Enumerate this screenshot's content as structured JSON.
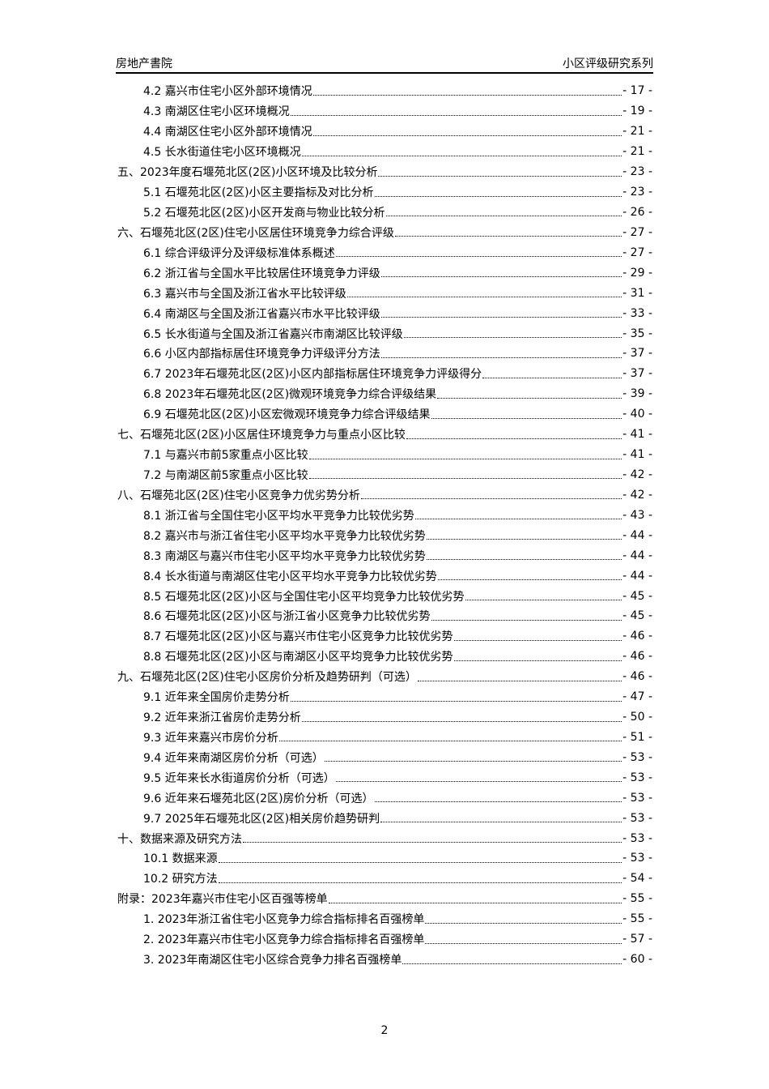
{
  "header": {
    "left": "房地产書院",
    "right": "小区评级研究系列"
  },
  "toc": [
    {
      "level": 1,
      "label": "4.2 嘉兴市住宅小区外部环境情况",
      "page": "- 17 -"
    },
    {
      "level": 1,
      "label": "4.3 南湖区住宅小区环境概况",
      "page": "- 19 -"
    },
    {
      "level": 1,
      "label": "4.4 南湖区住宅小区外部环境情况",
      "page": "- 21 -"
    },
    {
      "level": 1,
      "label": "4.5 长水街道住宅小区环境概况",
      "page": "- 21 -"
    },
    {
      "level": 0,
      "label": "五、2023年度石堰苑北区(2区)小区环境及比较分析",
      "page": "- 23 -"
    },
    {
      "level": 1,
      "label": "5.1 石堰苑北区(2区)小区主要指标及对比分析",
      "page": "- 23 -"
    },
    {
      "level": 1,
      "label": "5.2 石堰苑北区(2区)小区开发商与物业比较分析",
      "page": "- 26 -"
    },
    {
      "level": 0,
      "label": "六、石堰苑北区(2区)住宅小区居住环境竞争力综合评级",
      "page": "- 27 -"
    },
    {
      "level": 1,
      "label": "6.1 综合评级评分及评级标准体系概述",
      "page": "- 27 -"
    },
    {
      "level": 1,
      "label": "6.2 浙江省与全国水平比较居住环境竞争力评级",
      "page": "- 29 -"
    },
    {
      "level": 1,
      "label": "6.3 嘉兴市与全国及浙江省水平比较评级",
      "page": "- 31 -"
    },
    {
      "level": 1,
      "label": "6.4 南湖区与全国及浙江省嘉兴市水平比较评级",
      "page": "- 33 -"
    },
    {
      "level": 1,
      "label": "6.5 长水街道与全国及浙江省嘉兴市南湖区比较评级",
      "page": "- 35 -"
    },
    {
      "level": 1,
      "label": "6.6 小区内部指标居住环境竞争力评级评分方法",
      "page": "- 37 -"
    },
    {
      "level": 1,
      "label": "6.7 2023年石堰苑北区(2区)小区内部指标居住环境竞争力评级得分",
      "page": "- 37 -"
    },
    {
      "level": 1,
      "label": "6.8 2023年石堰苑北区(2区)微观环境竞争力综合评级结果",
      "page": "- 39 -"
    },
    {
      "level": 1,
      "label": "6.9 石堰苑北区(2区)小区宏微观环境竞争力综合评级结果",
      "page": "- 40 -"
    },
    {
      "level": 0,
      "label": "七、石堰苑北区(2区)小区居住环境竞争力与重点小区比较",
      "page": "- 41 -"
    },
    {
      "level": 1,
      "label": "7.1 与嘉兴市前5家重点小区比较",
      "page": "- 41 -"
    },
    {
      "level": 1,
      "label": "7.2 与南湖区前5家重点小区比较",
      "page": "- 42 -"
    },
    {
      "level": 0,
      "label": "八、石堰苑北区(2区)住宅小区竞争力优劣势分析",
      "page": "- 42 -"
    },
    {
      "level": 1,
      "label": "8.1 浙江省与全国住宅小区平均水平竞争力比较优劣势",
      "page": "- 43 -"
    },
    {
      "level": 1,
      "label": "8.2 嘉兴市与浙江省住宅小区平均水平竞争力比较优劣势",
      "page": "- 44 -"
    },
    {
      "level": 1,
      "label": "8.3 南湖区与嘉兴市住宅小区平均水平竞争力比较优劣势",
      "page": "- 44 -"
    },
    {
      "level": 1,
      "label": "8.4 长水街道与南湖区住宅小区平均水平竞争力比较优劣势",
      "page": "- 44 -"
    },
    {
      "level": 1,
      "label": "8.5 石堰苑北区(2区)小区与全国住宅小区平均竞争力比较优劣势",
      "page": "- 45 -"
    },
    {
      "level": 1,
      "label": "8.6 石堰苑北区(2区)小区与浙江省小区竞争力比较优劣势",
      "page": "- 45 -"
    },
    {
      "level": 1,
      "label": "8.7 石堰苑北区(2区)小区与嘉兴市住宅小区竞争力比较优劣势",
      "page": "- 46 -"
    },
    {
      "level": 1,
      "label": "8.8 石堰苑北区(2区)小区与南湖区小区平均竞争力比较优劣势",
      "page": "- 46 -"
    },
    {
      "level": 0,
      "label": "九、石堰苑北区(2区)住宅小区房价分析及趋势研判（可选）",
      "page": "- 46 -"
    },
    {
      "level": 1,
      "label": "9.1 近年来全国房价走势分析",
      "page": "- 47 -"
    },
    {
      "level": 1,
      "label": "9.2 近年来浙江省房价走势分析",
      "page": "- 50 -"
    },
    {
      "level": 1,
      "label": "9.3 近年来嘉兴市房价分析",
      "page": "- 51 -"
    },
    {
      "level": 1,
      "label": "9.4 近年来南湖区房价分析（可选）",
      "page": "- 53 -"
    },
    {
      "level": 1,
      "label": "9.5 近年来长水街道房价分析（可选）",
      "page": "- 53 -"
    },
    {
      "level": 1,
      "label": "9.6 近年来石堰苑北区(2区)房价分析（可选）",
      "page": "- 53 -"
    },
    {
      "level": 1,
      "label": "9.7 2025年石堰苑北区(2区)相关房价趋势研判",
      "page": "- 53 -"
    },
    {
      "level": 0,
      "label": "十、数据来源及研究方法",
      "page": "- 53 -"
    },
    {
      "level": 1,
      "label": "10.1 数据来源",
      "page": "- 53 -"
    },
    {
      "level": 1,
      "label": "10.2 研究方法",
      "page": "- 54 -"
    },
    {
      "level": 0,
      "label": "附录：2023年嘉兴市住宅小区百强等榜单",
      "page": "- 55 -"
    },
    {
      "level": 1,
      "label": "1.  2023年浙江省住宅小区竞争力综合指标排名百强榜单",
      "page": "- 55 -"
    },
    {
      "level": 1,
      "label": "2.  2023年嘉兴市住宅小区竞争力综合指标排名百强榜单",
      "page": "- 57 -"
    },
    {
      "level": 1,
      "label": "3.  2023年南湖区住宅小区综合竞争力排名百强榜单",
      "page": "- 60 -"
    }
  ],
  "footer": {
    "page_number": "2"
  }
}
